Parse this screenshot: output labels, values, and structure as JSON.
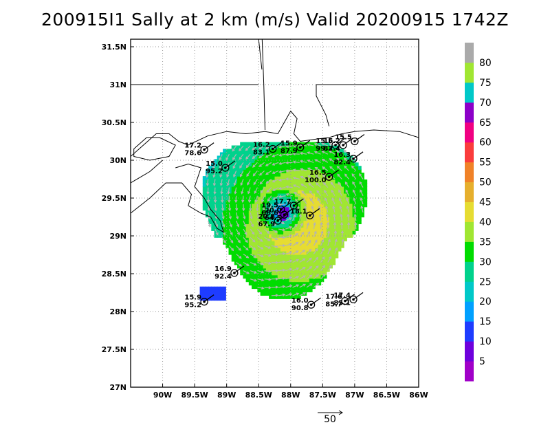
{
  "title": "200915I1 Sally at 2 km (m/s) Valid 20200915 1742Z",
  "colors": {
    "coast": "#000000",
    "grid": "#9a9a9a",
    "vector": "#b4b4b4",
    "colorbar": [
      "#a000c8",
      "#6e00dc",
      "#1e3cff",
      "#00a0ff",
      "#00c8c8",
      "#00d28c",
      "#00dc00",
      "#a0e632",
      "#e6dc32",
      "#e6af2d",
      "#f08228",
      "#fa3c3c",
      "#f00082",
      "#8c00c8",
      "#00c8c8",
      "#a0e632",
      "#aaaaaa"
    ]
  },
  "chart_data": {
    "type": "heatmap",
    "title": "200915I1 Sally at 2 km (m/s) Valid 20200915 1742Z",
    "xlabel": "",
    "ylabel": "",
    "xlim": [
      -90.5,
      -86
    ],
    "ylim": [
      27,
      31.6
    ],
    "x_ticks": [
      "90W",
      "89.5W",
      "89W",
      "88.5W",
      "88W",
      "87.5W",
      "87W",
      "86.5W",
      "86W"
    ],
    "y_ticks": [
      "27N",
      "27.5N",
      "28N",
      "28.5N",
      "29N",
      "29.5N",
      "30N",
      "30.5N",
      "31N",
      "31.5N"
    ],
    "grid": true,
    "storm_center": [
      -88.1,
      29.3
    ],
    "colorbar": {
      "labels": [
        "5",
        "10",
        "15",
        "20",
        "25",
        "30",
        "35",
        "40",
        "45",
        "50",
        "55",
        "60",
        "65",
        "70",
        "75",
        "80"
      ],
      "levels": [
        5,
        10,
        15,
        20,
        25,
        30,
        35,
        40,
        45,
        50,
        55,
        60,
        65,
        70,
        75,
        80
      ]
    },
    "reference_vector": {
      "label": "50",
      "value": 50
    },
    "observations": [
      {
        "lon": -89.35,
        "lat": 30.14,
        "speed": "17.2",
        "pressure": "78.6"
      },
      {
        "lon": -89.02,
        "lat": 29.9,
        "speed": "15.0",
        "pressure": "95.2"
      },
      {
        "lon": -88.28,
        "lat": 30.15,
        "speed": "16.2",
        "pressure": "83.1"
      },
      {
        "lon": -87.85,
        "lat": 30.17,
        "speed": "15.9",
        "pressure": "87.9"
      },
      {
        "lon": -87.3,
        "lat": 30.2,
        "speed": "15.5",
        "pressure": "99.3"
      },
      {
        "lon": -87.18,
        "lat": 30.2,
        "speed": "16.2",
        "pressure": "82.4"
      },
      {
        "lon": -87.0,
        "lat": 30.25,
        "speed": "15.5",
        "pressure": ""
      },
      {
        "lon": -87.02,
        "lat": 30.02,
        "speed": "16.3",
        "pressure": "82.4"
      },
      {
        "lon": -87.4,
        "lat": 29.78,
        "speed": "16.5",
        "pressure": "100.0"
      },
      {
        "lon": -87.95,
        "lat": 29.4,
        "speed": "17.7",
        "pressure": ""
      },
      {
        "lon": -87.7,
        "lat": 29.27,
        "speed": "18.1",
        "pressure": ""
      },
      {
        "lon": -88.15,
        "lat": 29.35,
        "speed": "19.5",
        "pressure": "68.6"
      },
      {
        "lon": -88.1,
        "lat": 29.28,
        "speed": "20.0",
        "pressure": "64.5"
      },
      {
        "lon": -88.2,
        "lat": 29.2,
        "speed": "20.8",
        "pressure": "67.9"
      },
      {
        "lon": -88.88,
        "lat": 28.51,
        "speed": "16.9",
        "pressure": "92.4"
      },
      {
        "lon": -89.35,
        "lat": 28.13,
        "speed": "15.9",
        "pressure": "95.2"
      },
      {
        "lon": -87.68,
        "lat": 28.09,
        "speed": "16.0",
        "pressure": "90.8"
      },
      {
        "lon": -87.02,
        "lat": 28.16,
        "speed": "17.4",
        "pressure": "85.1"
      },
      {
        "lon": -87.15,
        "lat": 28.14,
        "speed": "17.6",
        "pressure": "85.7"
      }
    ]
  }
}
